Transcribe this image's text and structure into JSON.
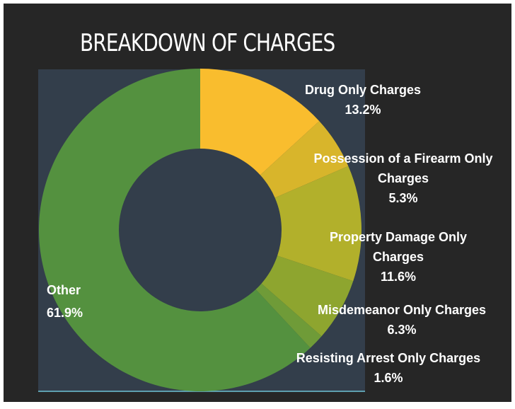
{
  "chart_data": {
    "type": "donut",
    "title": "BREAKDOWN OF CHARGES",
    "categories": [
      "Drug Only Charges",
      "Possession of a Firearm Only Charges",
      "Property Damage Only Charges",
      "Misdemeanor Only Charges",
      "Resisting Arrest Only Charges",
      "Other"
    ],
    "values": [
      13.2,
      5.3,
      11.6,
      6.3,
      1.6,
      61.9
    ],
    "value_labels": [
      "13.2%",
      "5.3%",
      "11.6%",
      "6.3%",
      "1.6%",
      "61.9%"
    ],
    "colors": [
      "#f9bd2e",
      "#d8b52b",
      "#b2b02b",
      "#8ea52f",
      "#6f9b38",
      "#54913f"
    ]
  }
}
